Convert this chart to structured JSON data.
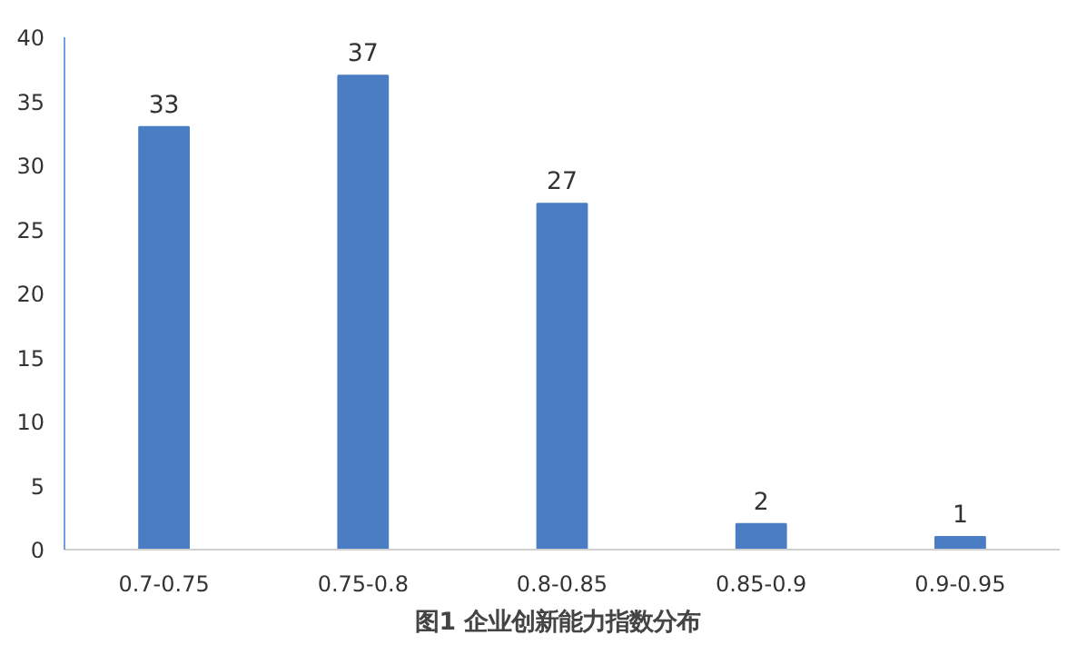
{
  "chart_data": {
    "type": "bar",
    "title": "图1  企业创新能力指数分布",
    "categories": [
      "0.7-0.75",
      "0.75-0.8",
      "0.8-0.85",
      "0.85-0.9",
      "0.9-0.95"
    ],
    "values": [
      33,
      37,
      27,
      2,
      1
    ],
    "color": "#4a7dc4",
    "ylim": [
      0,
      40
    ],
    "yticks": [
      0,
      5,
      10,
      15,
      20,
      25,
      30,
      35,
      40
    ],
    "data_labels": true,
    "grid": false
  }
}
